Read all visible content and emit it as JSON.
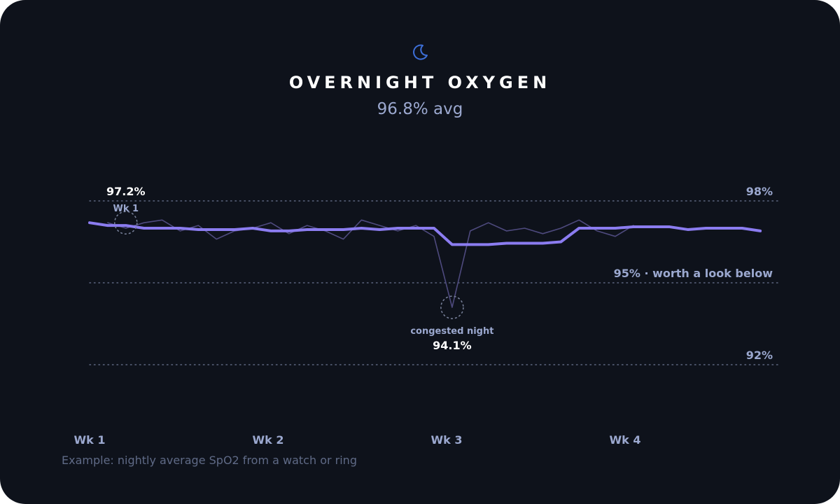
{
  "header": {
    "icon": "moon-icon",
    "title": "OVERNIGHT OXYGEN",
    "subtitle": "96.8% avg"
  },
  "footnote": "Example: nightly average SpO2 from a watch or ring",
  "colors": {
    "background": "#0e121b",
    "trend_line": "#8b7cf0",
    "nightly_line": "#4e4a7e",
    "text_muted": "#9ba8cf",
    "icon": "#3d6fd8"
  },
  "chart_data": {
    "type": "line",
    "y_unit": "%",
    "ylim": [
      92,
      98
    ],
    "x_ticks": [
      "Wk 1",
      "Wk 2",
      "Wk 3",
      "Wk 4"
    ],
    "reference_lines": [
      {
        "value": 98,
        "label": "98%"
      },
      {
        "value": 95,
        "label": "95% · worth a look below"
      },
      {
        "value": 92,
        "label": "92%"
      }
    ],
    "series": [
      {
        "role": "nightly",
        "values": [
          97.2,
          97.0,
          97.2,
          97.3,
          96.9,
          97.1,
          96.6,
          96.9,
          97.0,
          97.2,
          96.8,
          97.1,
          96.9,
          96.6,
          97.3,
          97.1,
          96.9,
          97.1,
          96.7,
          94.1,
          96.9,
          97.2,
          96.9,
          97.0,
          96.8,
          97.0,
          97.3,
          96.9,
          96.7,
          97.1
        ],
        "x": [
          1,
          2,
          3,
          4,
          5,
          6,
          7,
          8,
          9,
          10,
          11,
          12,
          13,
          14,
          15,
          16,
          17,
          18,
          19,
          20,
          21,
          22,
          23,
          24,
          25,
          26,
          27,
          28,
          29,
          30
        ]
      },
      {
        "role": "trend",
        "values": [
          97.2,
          97.1,
          97.1,
          97.0,
          97.0,
          97.0,
          96.95,
          96.95,
          96.95,
          97.0,
          96.9,
          96.9,
          96.95,
          96.95,
          96.95,
          97.0,
          96.95,
          97.0,
          97.0,
          97.0,
          96.4,
          96.4,
          96.4,
          96.45,
          96.45,
          96.45,
          96.5,
          97.0,
          97.0,
          97.0,
          97.05,
          97.05,
          97.05,
          96.95,
          97.0,
          97.0,
          97.0,
          96.9
        ],
        "x": [
          0,
          1,
          2,
          3,
          4,
          5,
          6,
          7,
          8,
          9,
          10,
          11,
          12,
          13,
          14,
          15,
          16,
          17,
          18,
          19,
          20,
          21,
          22,
          23,
          24,
          25,
          26,
          27,
          28,
          29,
          30,
          31,
          32,
          33,
          34,
          35,
          36,
          37
        ]
      }
    ],
    "annotations": [
      {
        "x": 2,
        "y": 97.2,
        "label": "Wk 1",
        "value_label": "97.2%"
      },
      {
        "x": 20,
        "y": 94.1,
        "label": "congested night",
        "value_label": "94.1%"
      }
    ]
  }
}
